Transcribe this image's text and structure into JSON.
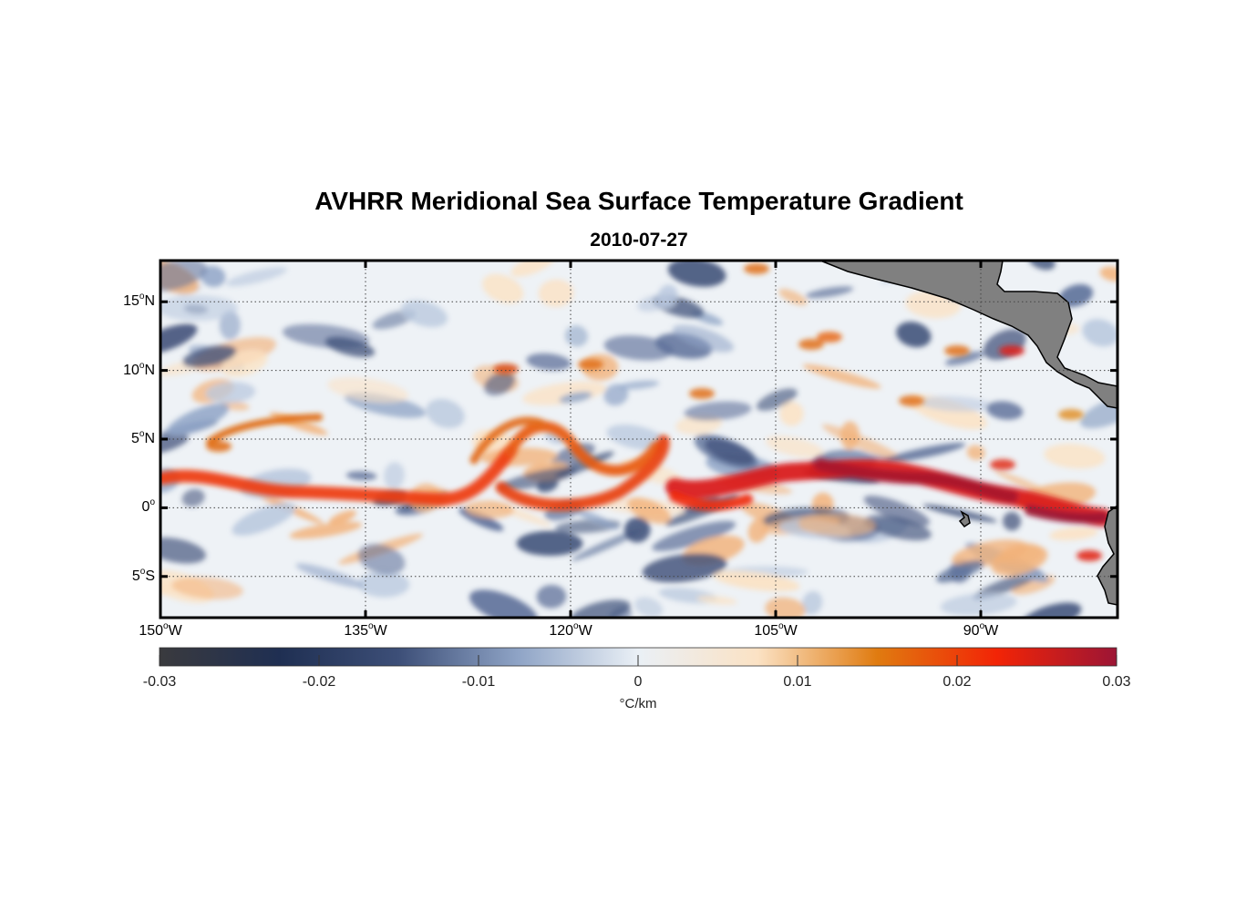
{
  "title": "AVHRR Meridional Sea Surface Temperature Gradient",
  "date": "2010-07-27",
  "map": {
    "lon_range": [
      -150,
      -80
    ],
    "lat_range": [
      -8,
      18
    ],
    "lat_ticks": [
      {
        "value": 15,
        "num": "15",
        "hemi": "N"
      },
      {
        "value": 10,
        "num": "10",
        "hemi": "N"
      },
      {
        "value": 5,
        "num": "5",
        "hemi": "N"
      },
      {
        "value": 0,
        "num": "0",
        "hemi": ""
      },
      {
        "value": -5,
        "num": "5",
        "hemi": "S"
      }
    ],
    "lon_ticks": [
      {
        "value": -150,
        "num": "150",
        "hemi": "W"
      },
      {
        "value": -135,
        "num": "135",
        "hemi": "W"
      },
      {
        "value": -120,
        "num": "120",
        "hemi": "W"
      },
      {
        "value": -105,
        "num": "105",
        "hemi": "W"
      },
      {
        "value": -90,
        "num": "90",
        "hemi": "W"
      }
    ],
    "grid": true,
    "land_color": "#808080"
  },
  "colorbar": {
    "min": -0.03,
    "max": 0.03,
    "ticks": [
      "-0.03",
      "-0.02",
      "-0.01",
      "0",
      "0.01",
      "0.02",
      "0.03"
    ],
    "label": "°C/km",
    "colors": [
      "#3a3a3e",
      "#1f2f52",
      "#3d4f78",
      "#8fa4c6",
      "#eaf0f6",
      "#fbe2c4",
      "#e07b10",
      "#f22406",
      "#9c1535"
    ]
  }
}
